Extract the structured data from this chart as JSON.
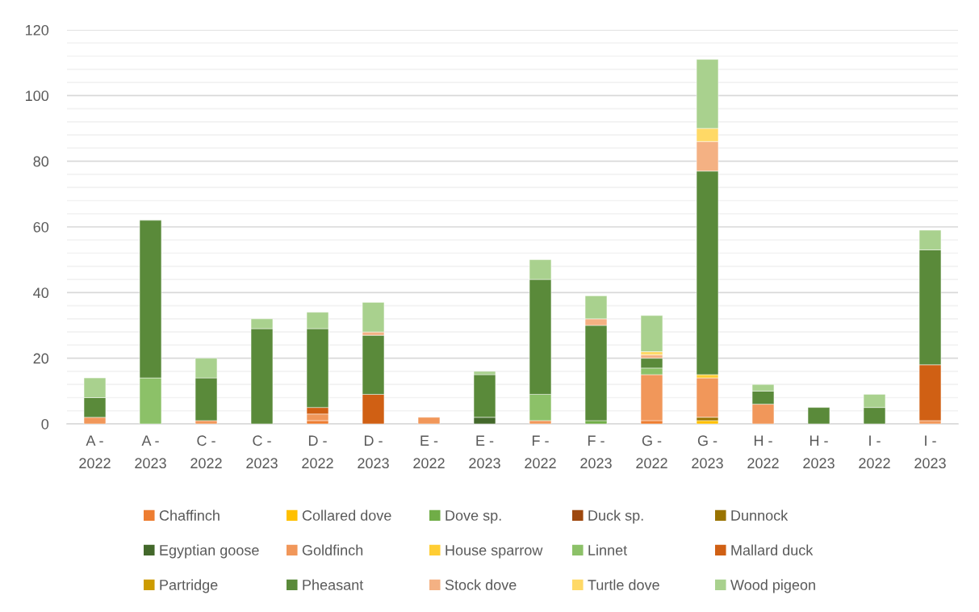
{
  "chart_data": {
    "type": "bar",
    "stacked": true,
    "categories": [
      "A - 2022",
      "A - 2023",
      "C - 2022",
      "C - 2023",
      "D - 2022",
      "D - 2023",
      "E - 2022",
      "E - 2023",
      "F - 2022",
      "F - 2023",
      "G - 2022",
      "G - 2023",
      "H - 2022",
      "H - 2023",
      "I - 2022",
      "I - 2023"
    ],
    "series": [
      {
        "name": "Chaffinch",
        "color": "#ed7d31",
        "values": [
          null,
          null,
          null,
          null,
          1,
          null,
          null,
          null,
          null,
          null,
          1,
          null,
          null,
          null,
          null,
          null
        ]
      },
      {
        "name": "Collared dove",
        "color": "#ffc000",
        "values": [
          null,
          null,
          null,
          null,
          null,
          null,
          null,
          null,
          null,
          null,
          null,
          1,
          null,
          null,
          null,
          null
        ]
      },
      {
        "name": "Dove sp.",
        "color": "#70ad47",
        "values": [
          null,
          null,
          null,
          null,
          null,
          null,
          null,
          null,
          null,
          1,
          null,
          null,
          null,
          null,
          null,
          null
        ]
      },
      {
        "name": "Duck sp.",
        "color": "#9e480e",
        "values": [
          null,
          null,
          null,
          null,
          null,
          null,
          null,
          null,
          null,
          null,
          null,
          null,
          null,
          null,
          null,
          null
        ]
      },
      {
        "name": "Dunnock",
        "color": "#997300",
        "values": [
          null,
          null,
          null,
          null,
          null,
          null,
          null,
          null,
          null,
          null,
          null,
          1,
          null,
          null,
          null,
          null
        ]
      },
      {
        "name": "Egyptian goose",
        "color": "#43682b",
        "values": [
          null,
          null,
          null,
          null,
          null,
          null,
          null,
          2,
          null,
          null,
          null,
          null,
          null,
          null,
          null,
          null
        ]
      },
      {
        "name": "Goldfinch",
        "color": "#f1975a",
        "values": [
          2,
          null,
          1,
          null,
          2,
          null,
          2,
          null,
          1,
          null,
          14,
          12,
          6,
          null,
          null,
          1
        ]
      },
      {
        "name": "House sparrow",
        "color": "#ffcd33",
        "values": [
          null,
          null,
          null,
          null,
          null,
          null,
          null,
          null,
          null,
          null,
          null,
          1,
          null,
          null,
          null,
          null
        ]
      },
      {
        "name": "Linnet",
        "color": "#8cc168",
        "values": [
          null,
          14,
          null,
          null,
          null,
          null,
          null,
          null,
          8,
          null,
          2,
          null,
          null,
          null,
          null,
          null
        ]
      },
      {
        "name": "Mallard duck",
        "color": "#d06014",
        "values": [
          null,
          null,
          null,
          null,
          2,
          9,
          null,
          null,
          null,
          null,
          null,
          null,
          null,
          null,
          null,
          17
        ]
      },
      {
        "name": "Partridge",
        "color": "#cc9b00",
        "values": [
          null,
          null,
          null,
          null,
          null,
          null,
          null,
          null,
          null,
          null,
          null,
          null,
          null,
          null,
          null,
          null
        ]
      },
      {
        "name": "Pheasant",
        "color": "#5a8a3a",
        "values": [
          6,
          48,
          13,
          29,
          24,
          18,
          null,
          13,
          35,
          29,
          3,
          62,
          4,
          5,
          5,
          35
        ]
      },
      {
        "name": "Stock dove",
        "color": "#f4b183",
        "values": [
          null,
          null,
          null,
          null,
          null,
          1,
          null,
          null,
          null,
          2,
          1,
          9,
          null,
          null,
          null,
          null
        ]
      },
      {
        "name": "Turtle dove",
        "color": "#ffd966",
        "values": [
          null,
          null,
          null,
          null,
          null,
          null,
          null,
          null,
          null,
          null,
          1,
          4,
          null,
          null,
          null,
          null
        ]
      },
      {
        "name": "Wood pigeon",
        "color": "#a9d18e",
        "values": [
          6,
          null,
          6,
          3,
          5,
          9,
          null,
          1,
          6,
          7,
          11,
          21,
          2,
          null,
          4,
          6
        ]
      }
    ],
    "ylim": [
      0,
      120
    ],
    "yticks": [
      0,
      {
        "value": 4,
        "label": null
      },
      {
        "value": 8,
        "label": null
      },
      {
        "value": 12,
        "label": null
      },
      {
        "value": 16,
        "label": null
      },
      20,
      {
        "value": 24,
        "label": null
      },
      {
        "value": 28,
        "label": null
      },
      {
        "value": 32,
        "label": null
      },
      {
        "value": 36,
        "label": null
      },
      40,
      {
        "value": 44,
        "label": null
      },
      {
        "value": 48,
        "label": null
      },
      {
        "value": 52,
        "label": null
      },
      {
        "value": 56,
        "label": null
      },
      60,
      {
        "value": 64,
        "label": null
      },
      {
        "value": 68,
        "label": null
      },
      {
        "value": 72,
        "label": null
      },
      {
        "value": 76,
        "label": null
      },
      80,
      {
        "value": 84,
        "label": null
      },
      {
        "value": 88,
        "label": null
      },
      {
        "value": 92,
        "label": null
      },
      {
        "value": 96,
        "label": null
      },
      100,
      {
        "value": 104,
        "label": null
      },
      {
        "value": 108,
        "label": null
      },
      {
        "value": 112,
        "label": null
      },
      {
        "value": 116,
        "label": null
      },
      120
    ],
    "grid": true,
    "legend": "bottom"
  }
}
